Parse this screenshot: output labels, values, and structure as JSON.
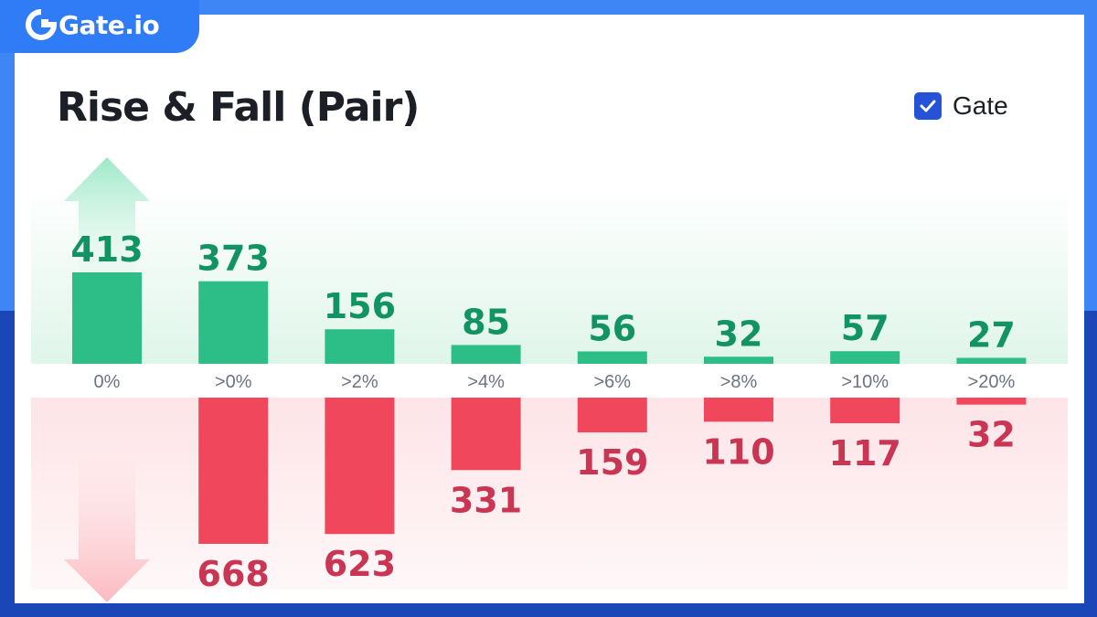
{
  "brand": {
    "logo_text": "Gate.io"
  },
  "header": {
    "title": "Rise & Fall (Pair)"
  },
  "legend": {
    "label": "Gate",
    "checked": true
  },
  "colors": {
    "rise": "#2dbe87",
    "rise_text": "#129364",
    "fall": "#f0475d",
    "fall_text": "#c93552",
    "tick_text": "#6b7280",
    "brand_blue": "#2f7cf6"
  },
  "chart_data": {
    "type": "bar",
    "title": "Rise & Fall (Pair)",
    "categories": [
      "0%",
      ">0%",
      ">2%",
      ">4%",
      ">6%",
      ">8%",
      ">10%",
      ">20%"
    ],
    "series": [
      {
        "name": "Rise",
        "values": [
          413,
          373,
          156,
          85,
          56,
          32,
          57,
          27
        ]
      },
      {
        "name": "Fall",
        "values": [
          null,
          668,
          623,
          331,
          159,
          110,
          117,
          32
        ]
      }
    ],
    "grid": false,
    "legend_position": "top-right"
  }
}
